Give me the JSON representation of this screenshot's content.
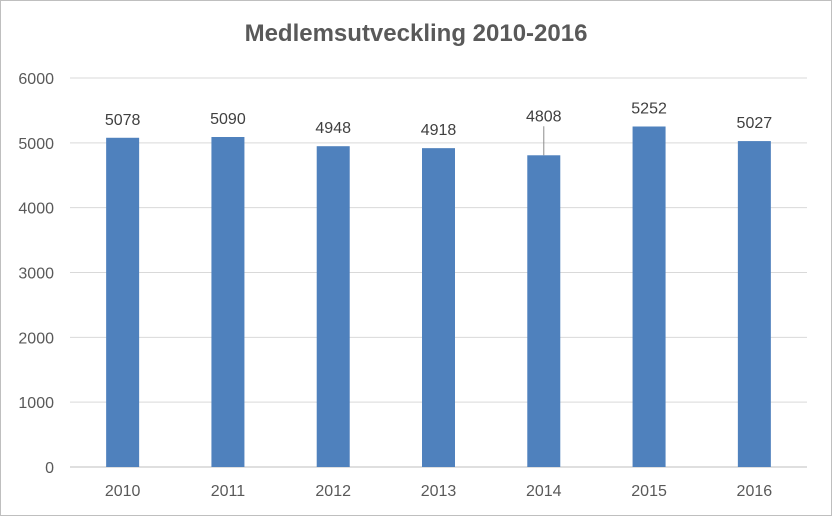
{
  "chart_data": {
    "type": "bar",
    "title": "Medlemsutveckling 2010-2016",
    "xlabel": "",
    "ylabel": "",
    "categories": [
      "2010",
      "2011",
      "2012",
      "2013",
      "2014",
      "2015",
      "2016"
    ],
    "values": [
      5078,
      5090,
      4948,
      4918,
      4808,
      5252,
      5027
    ],
    "data_labels": [
      "5078",
      "5090",
      "4948",
      "4918",
      "4808",
      "5252",
      "5027"
    ],
    "ylim": [
      0,
      6000
    ],
    "yticks": [
      0,
      1000,
      2000,
      3000,
      4000,
      5000,
      6000
    ],
    "ytick_labels": [
      "0",
      "1000",
      "2000",
      "3000",
      "4000",
      "5000",
      "6000"
    ],
    "grid": true,
    "legend": "none",
    "colors": {
      "bar": "#4f81bd",
      "grid": "#d9d9d9",
      "text": "#595959"
    }
  }
}
